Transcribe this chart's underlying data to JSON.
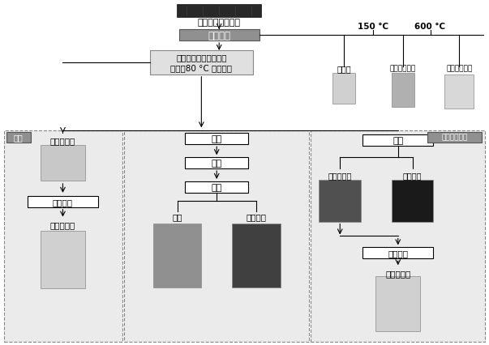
{
  "bg_color": "#ffffff",
  "fig_width": 6.03,
  "fig_height": 4.27,
  "dpi": 100,
  "top_image_label": "废旧钴酸锂电极片",
  "pyrolysis_box": "热解处理",
  "leaching_box": "热解正极片放入水中搅\n拌，并80 °C 水浴加热",
  "temp_150": "150 °C",
  "temp_600": "600 °C",
  "product1_label": "电解液",
  "product2_label": "热解液体产品",
  "product3_label": "热解气体产品",
  "left_panel_label": "水浸",
  "left_node1": "锂离子溶液",
  "left_node2": "蒸发结晶",
  "left_node3": "含锂化合物",
  "mid_node1": "过滤",
  "mid_node2": "干燥",
  "mid_node3": "筛分",
  "mid_left_label": "铝箔",
  "mid_right_label": "含钴粉体",
  "right_panel_label": "无还原剂酸浸",
  "right_filter": "过滤",
  "right_left_label": "钴离子溶液",
  "right_right_label": "冶金残渣",
  "right_node2": "蒸发结晶",
  "right_node3": "含钴化合物",
  "gray_box": "#909090",
  "light_gray_box": "#d8d8d8",
  "white_box": "#ffffff",
  "panel_bg": "#e8e8e8",
  "black": "#000000",
  "white": "#ffffff",
  "dark_img": "#383838",
  "medium_img": "#787878",
  "light_img": "#c8c8c8",
  "very_dark_img": "#181818"
}
